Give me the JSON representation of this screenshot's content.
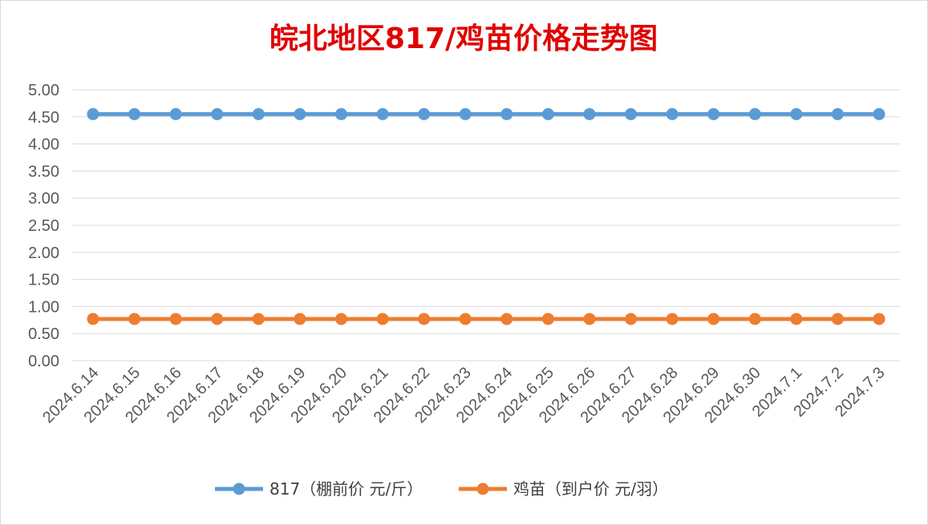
{
  "chart_data": {
    "type": "line",
    "title": "皖北地区817/鸡苗价格走势图",
    "xlabel": "",
    "ylabel": "",
    "ylim": [
      0,
      5
    ],
    "ytick_labels": [
      "0.00",
      "0.50",
      "1.00",
      "1.50",
      "2.00",
      "2.50",
      "3.00",
      "3.50",
      "4.00",
      "4.50",
      "5.00"
    ],
    "grid": true,
    "legend_position": "bottom",
    "categories": [
      "2024.6.14",
      "2024.6.15",
      "2024.6.16",
      "2024.6.17",
      "2024.6.18",
      "2024.6.19",
      "2024.6.20",
      "2024.6.21",
      "2024.6.22",
      "2024.6.23",
      "2024.6.24",
      "2024.6.25",
      "2024.6.26",
      "2024.6.27",
      "2024.6.28",
      "2024.6.29",
      "2024.6.30",
      "2024.7.1",
      "2024.7.2",
      "2024.7.3"
    ],
    "series": [
      {
        "name": "817（棚前价 元/斤）",
        "color": "#5b9bd5",
        "values": [
          4.55,
          4.55,
          4.55,
          4.55,
          4.55,
          4.55,
          4.55,
          4.55,
          4.55,
          4.55,
          4.55,
          4.55,
          4.55,
          4.55,
          4.55,
          4.55,
          4.55,
          4.55,
          4.55,
          4.55
        ]
      },
      {
        "name": "鸡苗（到户价 元/羽）",
        "color": "#ed7d31",
        "values": [
          0.77,
          0.77,
          0.77,
          0.77,
          0.77,
          0.77,
          0.77,
          0.77,
          0.77,
          0.77,
          0.77,
          0.77,
          0.77,
          0.77,
          0.77,
          0.77,
          0.77,
          0.77,
          0.77,
          0.77
        ]
      }
    ]
  }
}
